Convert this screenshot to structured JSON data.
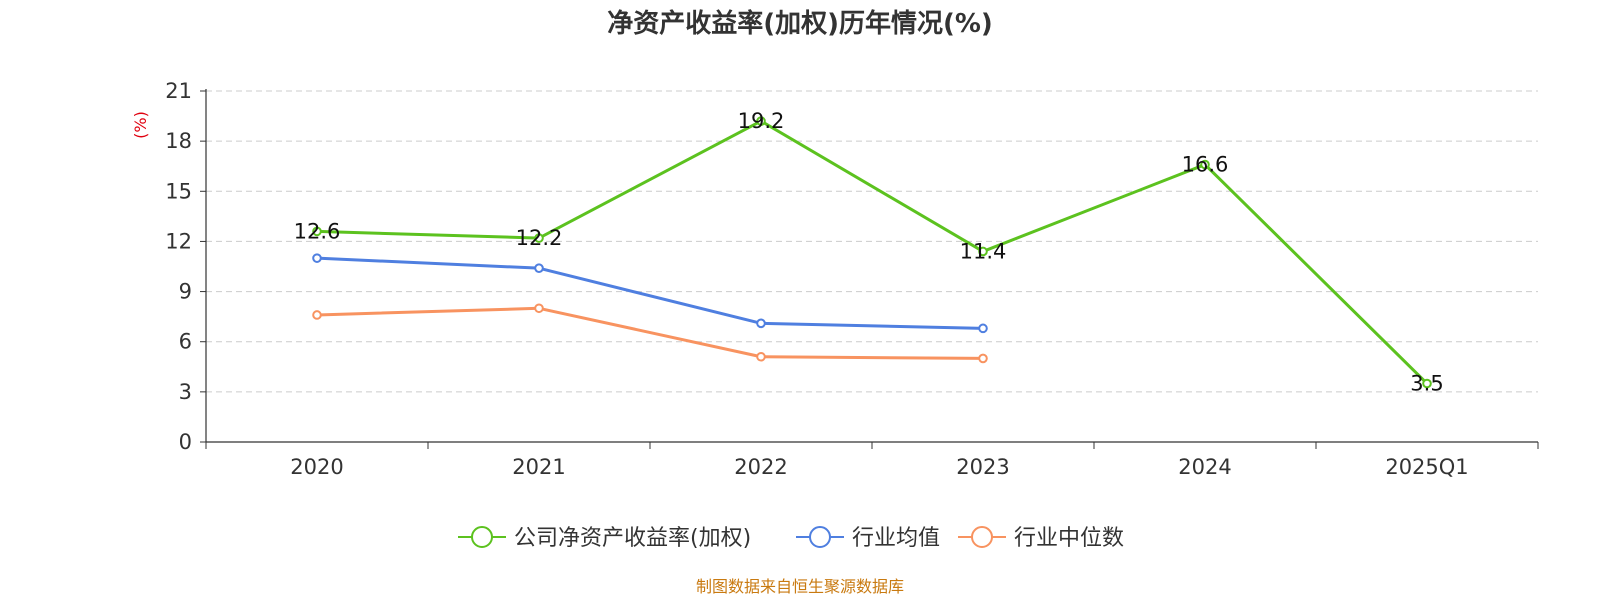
{
  "chart_data": {
    "type": "line",
    "title": "净资产收益率(加权)历年情况(%)",
    "ylabel": "(%)",
    "xlabel": "",
    "categories": [
      "2020",
      "2021",
      "2022",
      "2023",
      "2024",
      "2025Q1"
    ],
    "ylim": [
      0,
      21
    ],
    "yticks": [
      0,
      3,
      6,
      9,
      12,
      15,
      18,
      21
    ],
    "grid": true,
    "legend_position": "bottom-center",
    "series": [
      {
        "name": "公司净资产收益率(加权)",
        "color": "#5cc21f",
        "values": [
          12.6,
          12.2,
          19.2,
          11.4,
          16.6,
          3.5
        ],
        "show_labels": true
      },
      {
        "name": "行业均值",
        "color": "#4f7fe0",
        "values": [
          11.0,
          10.4,
          7.1,
          6.8,
          null,
          null
        ],
        "show_labels": false
      },
      {
        "name": "行业中位数",
        "color": "#f89360",
        "values": [
          7.6,
          8.0,
          5.1,
          5.0,
          null,
          null
        ],
        "show_labels": false
      }
    ]
  },
  "source": "制图数据来自恒生聚源数据库"
}
